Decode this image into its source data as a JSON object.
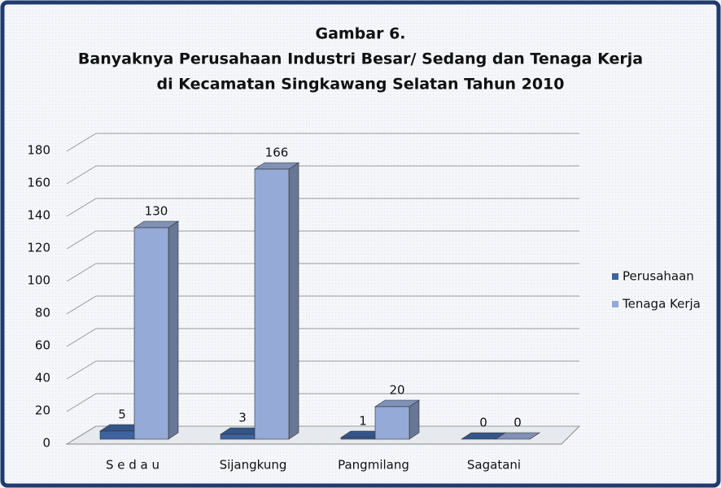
{
  "chart_data": {
    "type": "bar3d",
    "title": [
      "Gambar 6.",
      "Banyaknya Perusahaan Industri Besar/ Sedang dan Tenaga Kerja",
      "di Kecamatan Singkawang Selatan Tahun 2010"
    ],
    "categories": [
      "S e d a u",
      "Sijangkung",
      "Pangmilang",
      "Sagatani"
    ],
    "series": [
      {
        "name": "Perusahaan",
        "color": "#3d64a0",
        "values": [
          5,
          3,
          1,
          0
        ]
      },
      {
        "name": "Tenaga Kerja",
        "color": "#95aad6",
        "values": [
          130,
          166,
          20,
          0
        ]
      }
    ],
    "ylim": [
      0,
      180
    ],
    "yticks": [
      0,
      20,
      40,
      60,
      80,
      100,
      120,
      140,
      160,
      180
    ],
    "grid": true,
    "legend": "right"
  }
}
